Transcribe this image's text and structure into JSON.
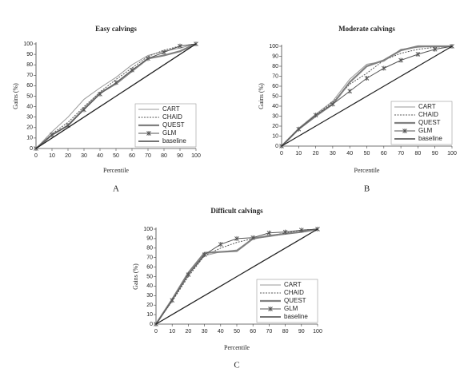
{
  "chart_data": [
    {
      "type": "line",
      "title": "Easy calvings",
      "panel_label": "A",
      "xlabel": "Percentile",
      "ylabel": "Gains (%)",
      "x": [
        0,
        10,
        20,
        30,
        40,
        50,
        60,
        70,
        80,
        90,
        100
      ],
      "xlim": [
        0,
        100
      ],
      "ylim": [
        0,
        100
      ],
      "xticks": [
        0,
        10,
        20,
        30,
        40,
        50,
        60,
        70,
        80,
        90,
        100
      ],
      "yticks": [
        0,
        10,
        20,
        30,
        40,
        50,
        60,
        70,
        80,
        90,
        100
      ],
      "legend": "lower right",
      "series": [
        {
          "name": "CART",
          "color": "#999999",
          "linewidth": 1,
          "values": [
            0,
            16,
            30,
            47,
            58,
            68,
            80,
            89,
            93,
            96,
            100
          ]
        },
        {
          "name": "CHAID",
          "color": "#555555",
          "linewidth": 1,
          "linestyle": "dotted",
          "values": [
            0,
            14,
            25,
            40,
            54,
            66,
            77,
            88,
            94,
            98,
            100
          ]
        },
        {
          "name": "QUEST",
          "color": "#808080",
          "linewidth": 2.2,
          "values": [
            0,
            13,
            22,
            38,
            53,
            62,
            74,
            86,
            89,
            93,
            100
          ]
        },
        {
          "name": "GLM",
          "color": "#555555",
          "linewidth": 1,
          "marker": "star",
          "values": [
            0,
            13,
            22,
            37,
            52,
            63,
            75,
            86,
            92,
            98,
            100
          ]
        },
        {
          "name": "baseline",
          "color": "#222222",
          "linewidth": 1.3,
          "values": [
            0,
            10,
            20,
            30,
            40,
            50,
            60,
            70,
            80,
            90,
            100
          ]
        }
      ]
    },
    {
      "type": "line",
      "title": "Moderate calvings",
      "panel_label": "B",
      "xlabel": "Percentile",
      "ylabel": "Gains (%)",
      "x": [
        0,
        10,
        20,
        30,
        40,
        50,
        60,
        70,
        80,
        90,
        100
      ],
      "xlim": [
        0,
        100
      ],
      "ylim": [
        0,
        100
      ],
      "xticks": [
        0,
        10,
        20,
        30,
        40,
        50,
        60,
        70,
        80,
        90,
        100
      ],
      "yticks": [
        0,
        10,
        20,
        30,
        40,
        50,
        60,
        70,
        80,
        90,
        100
      ],
      "legend": "lower right",
      "series": [
        {
          "name": "CART",
          "color": "#999999",
          "linewidth": 1,
          "values": [
            0,
            18,
            32,
            45,
            67,
            82,
            85,
            97,
            99,
            100,
            100
          ]
        },
        {
          "name": "CHAID",
          "color": "#555555",
          "linewidth": 1,
          "linestyle": "dotted",
          "values": [
            0,
            17,
            31,
            44,
            62,
            73,
            86,
            93,
            97,
            99,
            100
          ]
        },
        {
          "name": "QUEST",
          "color": "#808080",
          "linewidth": 2.2,
          "values": [
            0,
            17,
            30,
            42,
            64,
            80,
            86,
            96,
            100,
            100,
            100
          ]
        },
        {
          "name": "GLM",
          "color": "#555555",
          "linewidth": 1,
          "marker": "star",
          "values": [
            0,
            17,
            31,
            42,
            55,
            68,
            78,
            86,
            92,
            97,
            100
          ]
        },
        {
          "name": "baseline",
          "color": "#222222",
          "linewidth": 1.3,
          "values": [
            0,
            10,
            20,
            30,
            40,
            50,
            60,
            70,
            80,
            90,
            100
          ]
        }
      ]
    },
    {
      "type": "line",
      "title": "Difficult calvings",
      "panel_label": "C",
      "xlabel": "Percentile",
      "ylabel": "Gains (%)",
      "x": [
        0,
        10,
        20,
        30,
        40,
        50,
        60,
        70,
        80,
        90,
        100
      ],
      "xlim": [
        0,
        100
      ],
      "ylim": [
        0,
        100
      ],
      "xticks": [
        0,
        10,
        20,
        30,
        40,
        50,
        60,
        70,
        80,
        90,
        100
      ],
      "yticks": [
        0,
        10,
        20,
        30,
        40,
        50,
        60,
        70,
        80,
        90,
        100
      ],
      "legend": "lower right",
      "series": [
        {
          "name": "CART",
          "color": "#999999",
          "linewidth": 1,
          "values": [
            0,
            25,
            52,
            72,
            76,
            78,
            90,
            92,
            95,
            98,
            100
          ]
        },
        {
          "name": "CHAID",
          "color": "#555555",
          "linewidth": 1,
          "linestyle": "dotted",
          "values": [
            0,
            24,
            50,
            72,
            80,
            86,
            90,
            93,
            96,
            99,
            100
          ]
        },
        {
          "name": "QUEST",
          "color": "#808080",
          "linewidth": 2.2,
          "values": [
            0,
            26,
            54,
            75,
            76,
            77,
            90,
            93,
            95,
            97,
            100
          ]
        },
        {
          "name": "GLM",
          "color": "#555555",
          "linewidth": 1,
          "marker": "star",
          "values": [
            0,
            25,
            52,
            73,
            84,
            90,
            91,
            96,
            97,
            99,
            100
          ]
        },
        {
          "name": "baseline",
          "color": "#222222",
          "linewidth": 1.3,
          "values": [
            0,
            10,
            20,
            30,
            40,
            50,
            60,
            70,
            80,
            90,
            100
          ]
        }
      ]
    }
  ]
}
